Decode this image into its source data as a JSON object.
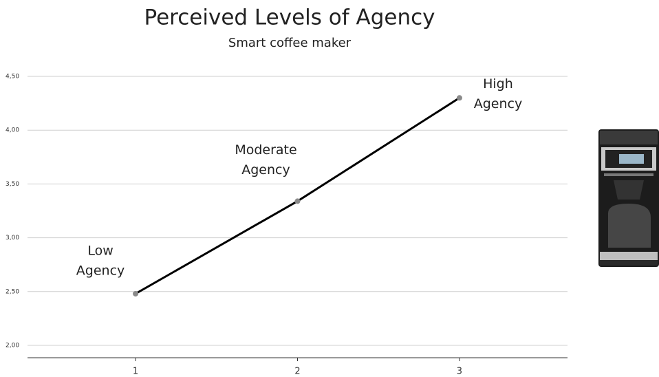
{
  "chart_data": {
    "type": "line",
    "title": "Perceived Levels of Agency",
    "subtitle": "Smart coffee maker",
    "x": [
      1,
      2,
      3
    ],
    "series": [
      {
        "name": "Smart coffee maker",
        "color": "#000000",
        "values": [
          2.48,
          3.34,
          4.3
        ]
      }
    ],
    "annotations": [
      [
        "Low",
        "Agency"
      ],
      [
        "Moderate",
        "Agency"
      ],
      [
        "High",
        "Agency"
      ]
    ],
    "xlim": [
      0.333,
      3.667
    ],
    "xticks": [
      1,
      2,
      3
    ],
    "ylim": [
      1.885,
      4.5
    ],
    "yticks": [
      {
        "value": 2.0,
        "label": "2,00"
      },
      {
        "value": 2.5,
        "label": "2,50"
      },
      {
        "value": 3.0,
        "label": "3,00"
      },
      {
        "value": 3.5,
        "label": "3,50"
      },
      {
        "value": 4.0,
        "label": "4,00"
      },
      {
        "value": 4.5,
        "label": "4,50"
      }
    ],
    "grid": true,
    "marker_color": "#8a8a8a"
  }
}
